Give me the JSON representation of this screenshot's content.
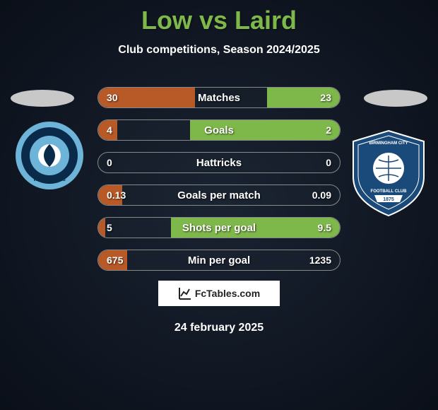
{
  "title": "Low vs Laird",
  "subtitle": "Club competitions, Season 2024/2025",
  "date": "24 february 2025",
  "attribution": "FcTables.com",
  "colors": {
    "left_fill": "#b85a28",
    "right_fill": "#7fb84a",
    "border": "#888888"
  },
  "stats": [
    {
      "label": "Matches",
      "left_val": "30",
      "right_val": "23",
      "left_pct": 40,
      "right_pct": 30
    },
    {
      "label": "Goals",
      "left_val": "4",
      "right_val": "2",
      "left_pct": 8,
      "right_pct": 62
    },
    {
      "label": "Hattricks",
      "left_val": "0",
      "right_val": "0",
      "left_pct": 0,
      "right_pct": 0
    },
    {
      "label": "Goals per match",
      "left_val": "0.13",
      "right_val": "0.09",
      "left_pct": 10,
      "right_pct": 0
    },
    {
      "label": "Shots per goal",
      "left_val": "5",
      "right_val": "9.5",
      "left_pct": 3,
      "right_pct": 70
    },
    {
      "label": "Min per goal",
      "left_val": "675",
      "right_val": "1235",
      "left_pct": 12,
      "right_pct": 0
    }
  ],
  "badges": {
    "left": {
      "name": "Wycombe Wanderers",
      "outer_ring": "#6db4d8",
      "inner_ring": "#0a2a4a",
      "center": "#ffffff"
    },
    "right": {
      "name": "Birmingham City Football Club",
      "shield_fill": "#1a4a7a",
      "shield_stroke": "#ffffff",
      "year": "1875"
    }
  }
}
